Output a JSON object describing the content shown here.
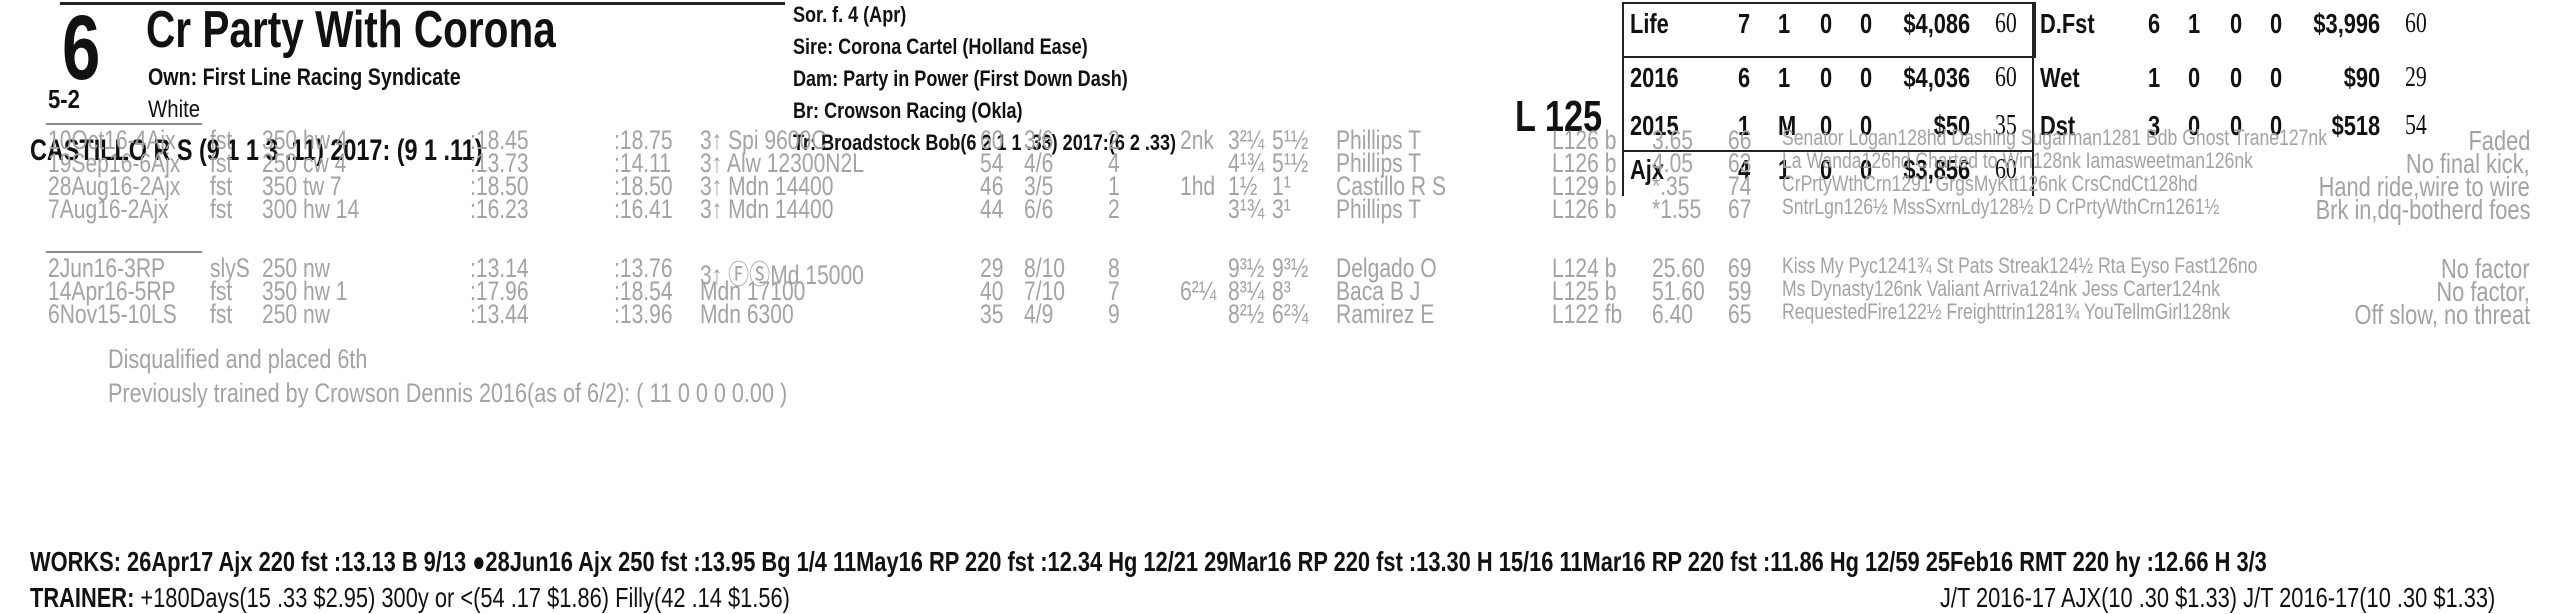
{
  "header": {
    "number": "6",
    "horse_name": "Cr Party With Corona",
    "owner": "Own: First Line Racing Syndicate",
    "odds": "5-2",
    "silks": "White",
    "jockey": "CASTILLO R S (9 1 1 3 .11) 2017: (9 1 .11)"
  },
  "breeding": {
    "sex_age": "Sor. f. 4 (Apr)",
    "sire": "Sire: Corona Cartel (Holland Ease)",
    "dam": "Dam: Party in Power (First Down Dash)",
    "breeder": "Br:   Crowson Racing (Okla)",
    "trainer": "Tr:   Broadstock Bob(6 2 1 1 .33)  2017:(6 2 .33)"
  },
  "weight": "L 125",
  "stats_left": [
    {
      "label": "Life",
      "st": "7",
      "w": "1",
      "p": "0",
      "s": "0",
      "earn": "$4,086",
      "spd": "60"
    },
    {
      "label": "2016",
      "st": "6",
      "w": "1",
      "p": "0",
      "s": "0",
      "earn": "$4,036",
      "spd": "60"
    },
    {
      "label": "2015",
      "st": "1",
      "w": "M",
      "p": "0",
      "s": "0",
      "earn": "$50",
      "spd": "35"
    },
    {
      "label": "Ajx",
      "st": "4",
      "w": "1",
      "p": "0",
      "s": "0",
      "earn": "$3,856",
      "spd": "60"
    }
  ],
  "stats_right": [
    {
      "label": "D.Fst",
      "st": "6",
      "w": "1",
      "p": "0",
      "s": "0",
      "earn": "$3,996",
      "spd": "60"
    },
    {
      "label": "Wet",
      "st": "1",
      "w": "0",
      "p": "0",
      "s": "0",
      "earn": "$90",
      "spd": "29"
    },
    {
      "label": "Dst",
      "st": "3",
      "w": "0",
      "p": "0",
      "s": "0",
      "earn": "$518",
      "spd": "54"
    }
  ],
  "races": [
    {
      "date": "10Oct16-4Ajx",
      "cond": "fst",
      "dist": "350 hw 4",
      "f1": ":18.45",
      "f2": ":18.75",
      "race": "3↑ Spi 9600C",
      "spd": "60",
      "pp": "3/6",
      "st": "2",
      "c1": "2nk",
      "c2": "3²¼",
      "fin": "5¹½",
      "jock": "Phillips T",
      "wt": "L126 b",
      "odds": "3.65",
      "sp": "66",
      "comp": "Senator Logan128hd Dashing Sugarman1281 Bdb Ghost Trane127nk",
      "comment": "Faded"
    },
    {
      "date": "19Sep16-6Ajx",
      "cond": "fst",
      "dist": "250 cw 4",
      "f1": ":13.73",
      "f2": ":14.11",
      "race": "3↑ Alw 12300N2L",
      "spd": "54",
      "pp": "4/6",
      "st": "4",
      "c1": "",
      "c2": "4¹¾",
      "fin": "5¹½",
      "jock": "Phillips T",
      "wt": "L126 b",
      "odds": "4.05",
      "sp": "63",
      "comp": "La Wanda126hd Charted to Win128nk Iamasweetman126nk",
      "comment": "No final kick,"
    },
    {
      "date": "28Aug16-2Ajx",
      "cond": "fst",
      "dist": "350 tw 7",
      "f1": ":18.50",
      "f2": ":18.50",
      "race": "3↑ Mdn 14400",
      "spd": "46",
      "pp": "3/5",
      "st": "1",
      "c1": "1hd",
      "c2": "1½",
      "fin": "1¹",
      "jock": "Castillo R S",
      "wt": "L129 b",
      "odds": "*.35",
      "sp": "74",
      "comp": "CrPrtyWthCrn1291 GrgsMyKtt126nk CrsCndCt128hd",
      "comment": "Hand ride,wire to wire"
    },
    {
      "date": "7Aug16-2Ajx",
      "cond": "fst",
      "dist": "300 hw 14",
      "f1": ":16.23",
      "f2": ":16.41",
      "race": "3↑ Mdn 14400",
      "spd": "44",
      "pp": "6/6",
      "st": "2",
      "c1": "",
      "c2": "3¹¾",
      "fin": "3¹",
      "jock": "Phillips T",
      "wt": "L126 b",
      "odds": "*1.55",
      "sp": "67",
      "comp": "SntrLgn126½ MssSxrnLdy128½ D CrPrtyWthCrn1261½",
      "comment": "Brk in,dq-botherd foes"
    },
    {
      "date": "2Jun16-3RP",
      "cond": "slyS",
      "dist": "250 nw",
      "f1": ":13.14",
      "f2": ":13.76",
      "race": "3↑ ⒻⓈMd 15000",
      "spd": "29",
      "pp": "8/10",
      "st": "8",
      "c1": "",
      "c2": "9³½",
      "fin": "9³½",
      "jock": "Delgado O",
      "wt": "L124 b",
      "odds": "25.60",
      "sp": "69",
      "comp": "Kiss My Pyc1241¾ St Pats Streak124½ Rta Eyso Fast126no",
      "comment": "No factor"
    },
    {
      "date": "14Apr16-5RP",
      "cond": "fst",
      "dist": "350 hw 1",
      "f1": ":17.96",
      "f2": ":18.54",
      "race": "Mdn 17100",
      "spd": "40",
      "pp": "7/10",
      "st": "7",
      "c1": "6²¼",
      "c2": "8³¼",
      "fin": "8³",
      "jock": "Baca B J",
      "wt": "L125 b",
      "odds": "51.60",
      "sp": "59",
      "comp": "Ms Dynasty126nk Valiant Arriva124nk Jess Carter124nk",
      "comment": "No factor,"
    },
    {
      "date": "6Nov15-10LS",
      "cond": "fst",
      "dist": "250 nw",
      "f1": ":13.44",
      "f2": ":13.96",
      "race": "Mdn 6300",
      "spd": "35",
      "pp": "4/9",
      "st": "9",
      "c1": "",
      "c2": "8²½",
      "fin": "6²¾",
      "jock": "Ramirez E",
      "wt": "L122 fb",
      "odds": "6.40",
      "sp": "65",
      "comp": "RequestedFire122½ Freighttrin1281¾ YouTellmGirl128nk",
      "comment": "Off slow, no threat"
    }
  ],
  "notes": {
    "dq": "Disqualified and placed 6th",
    "prev_trainer": "Previously trained by Crowson Dennis 2016(as of 6/2): ( 11 0 0 0 0.00 )"
  },
  "works": "WORKS:   26Apr17 Ajx 220 fst :13.13 B 9/13   ●28Jun16 Ajx 250 fst :13.95 Bg 1/4   11May16 RP 220 fst :12.34 Hg 12/21   29Mar16 RP 220 fst :13.30 H 15/16   11Mar16 RP 220 fst :11.86 Hg 12/59   25Feb16 RMT 220 hy :12.66 H 3/3",
  "trainer_stats": "TRAINER: +180Days(15 .33 $2.95) 300y or <(54 .17 $1.86) Filly(42 .14 $1.56)",
  "jt_stats": "J/T 2016-17 AJX(10 .30 $1.33)  J/T 2016-17(10 .30 $1.33)"
}
